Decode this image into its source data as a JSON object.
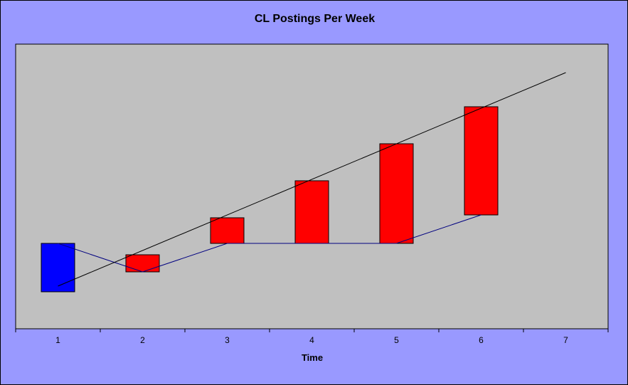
{
  "chart_data": {
    "type": "bar",
    "title": "CL Postings Per Week",
    "xlabel": "Time",
    "ylabel": "",
    "x_ticks": [
      "1",
      "2",
      "3",
      "4",
      "5",
      "6",
      "7"
    ],
    "xlim": [
      0.5,
      7.5
    ],
    "ylim": [
      0,
      100
    ],
    "grid": false,
    "legend": "none",
    "floating_bars": [
      {
        "x": 1,
        "low": 13,
        "high": 30,
        "color": "#0000ff"
      },
      {
        "x": 2,
        "low": 20,
        "high": 26,
        "color": "#ff0000"
      },
      {
        "x": 3,
        "low": 30,
        "high": 39,
        "color": "#ff0000"
      },
      {
        "x": 4,
        "low": 30,
        "high": 52,
        "color": "#ff0000"
      },
      {
        "x": 5,
        "low": 30,
        "high": 65,
        "color": "#ff0000"
      },
      {
        "x": 6,
        "low": 40,
        "high": 78,
        "color": "#ff0000"
      }
    ],
    "connector_line": {
      "color": "#000080",
      "points": [
        [
          1,
          30
        ],
        [
          2,
          20
        ],
        [
          3,
          30
        ],
        [
          4,
          30
        ],
        [
          5,
          30
        ],
        [
          6,
          40
        ]
      ]
    },
    "trend_line": {
      "color": "#000000",
      "points": [
        [
          1,
          15
        ],
        [
          7,
          90
        ]
      ]
    },
    "colors": {
      "background": "#9999ff",
      "plot_area": "#c0c0c0"
    }
  }
}
